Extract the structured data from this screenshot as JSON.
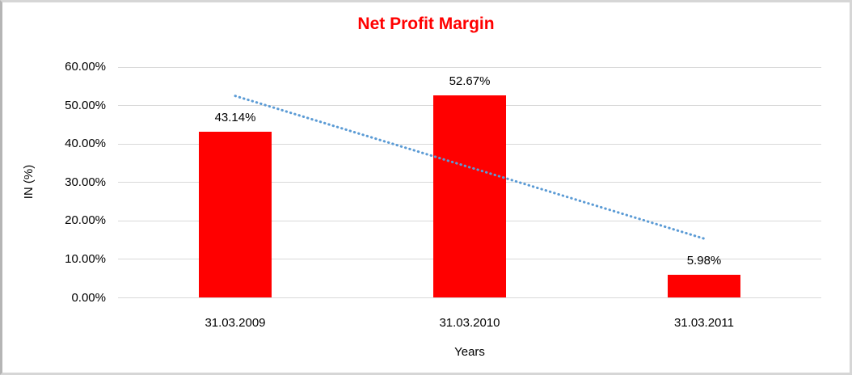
{
  "chart_data": {
    "type": "bar",
    "title": "Net Profit Margin",
    "title_color": "#ff0000",
    "categories": [
      "31.03.2009",
      "31.03.2010",
      "31.03.2011"
    ],
    "values": [
      43.14,
      52.67,
      5.98
    ],
    "data_labels": [
      "43.14%",
      "52.67%",
      "5.98%"
    ],
    "bar_color": "#ff0000",
    "xlabel": "Years",
    "ylabel": "IN (%)",
    "ylim": [
      0,
      60
    ],
    "ytick_step": 10,
    "ytick_labels": [
      "0.00%",
      "10.00%",
      "20.00%",
      "30.00%",
      "40.00%",
      "50.00%",
      "60.00%"
    ],
    "grid": true,
    "gridline_color": "#d9d9d9",
    "legend": "none",
    "trendline": {
      "style": "dotted",
      "color": "#5b9bd5",
      "start_value": 52.5,
      "end_value": 15.4
    }
  }
}
